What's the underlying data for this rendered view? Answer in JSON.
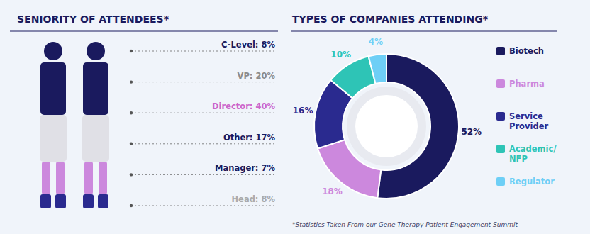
{
  "chart_data": [
    {
      "type": "list",
      "title": "SENIORITY OF ATTENDEES*",
      "annotations": [
        "C-Level: 8%",
        "VP: 20%",
        "Director: 40%",
        "Other: 17%",
        "Manager: 7%",
        "Head: 8%"
      ],
      "colors": [
        "#1a1a5e",
        "#8b8b8b",
        "#cc66cc",
        "#1a1a5e",
        "#1a1a5e",
        "#aaaaaa"
      ],
      "color": "#1a1a5e"
    },
    {
      "type": "pie",
      "title": "TYPES OF COMPANIES ATTENDING*",
      "categories": [
        "Biotech",
        "Pharma",
        "Service\nProvider",
        "Academic/\nNFP",
        "Regulator"
      ],
      "values": [
        52,
        18,
        16,
        10,
        4
      ],
      "value_labels": [
        "52%",
        "18%",
        "16%",
        "10%",
        "4%"
      ],
      "colors": [
        "#1a1a5e",
        "#cc88dd",
        "#2a2a8f",
        "#2ec4b6",
        "#6ecff6"
      ],
      "color": "#1a1a5e",
      "data_labels": true,
      "legend": "right",
      "annotations": [
        "*Statistics Taken From our Gene Therapy Patient Engagement Summit"
      ]
    }
  ]
}
